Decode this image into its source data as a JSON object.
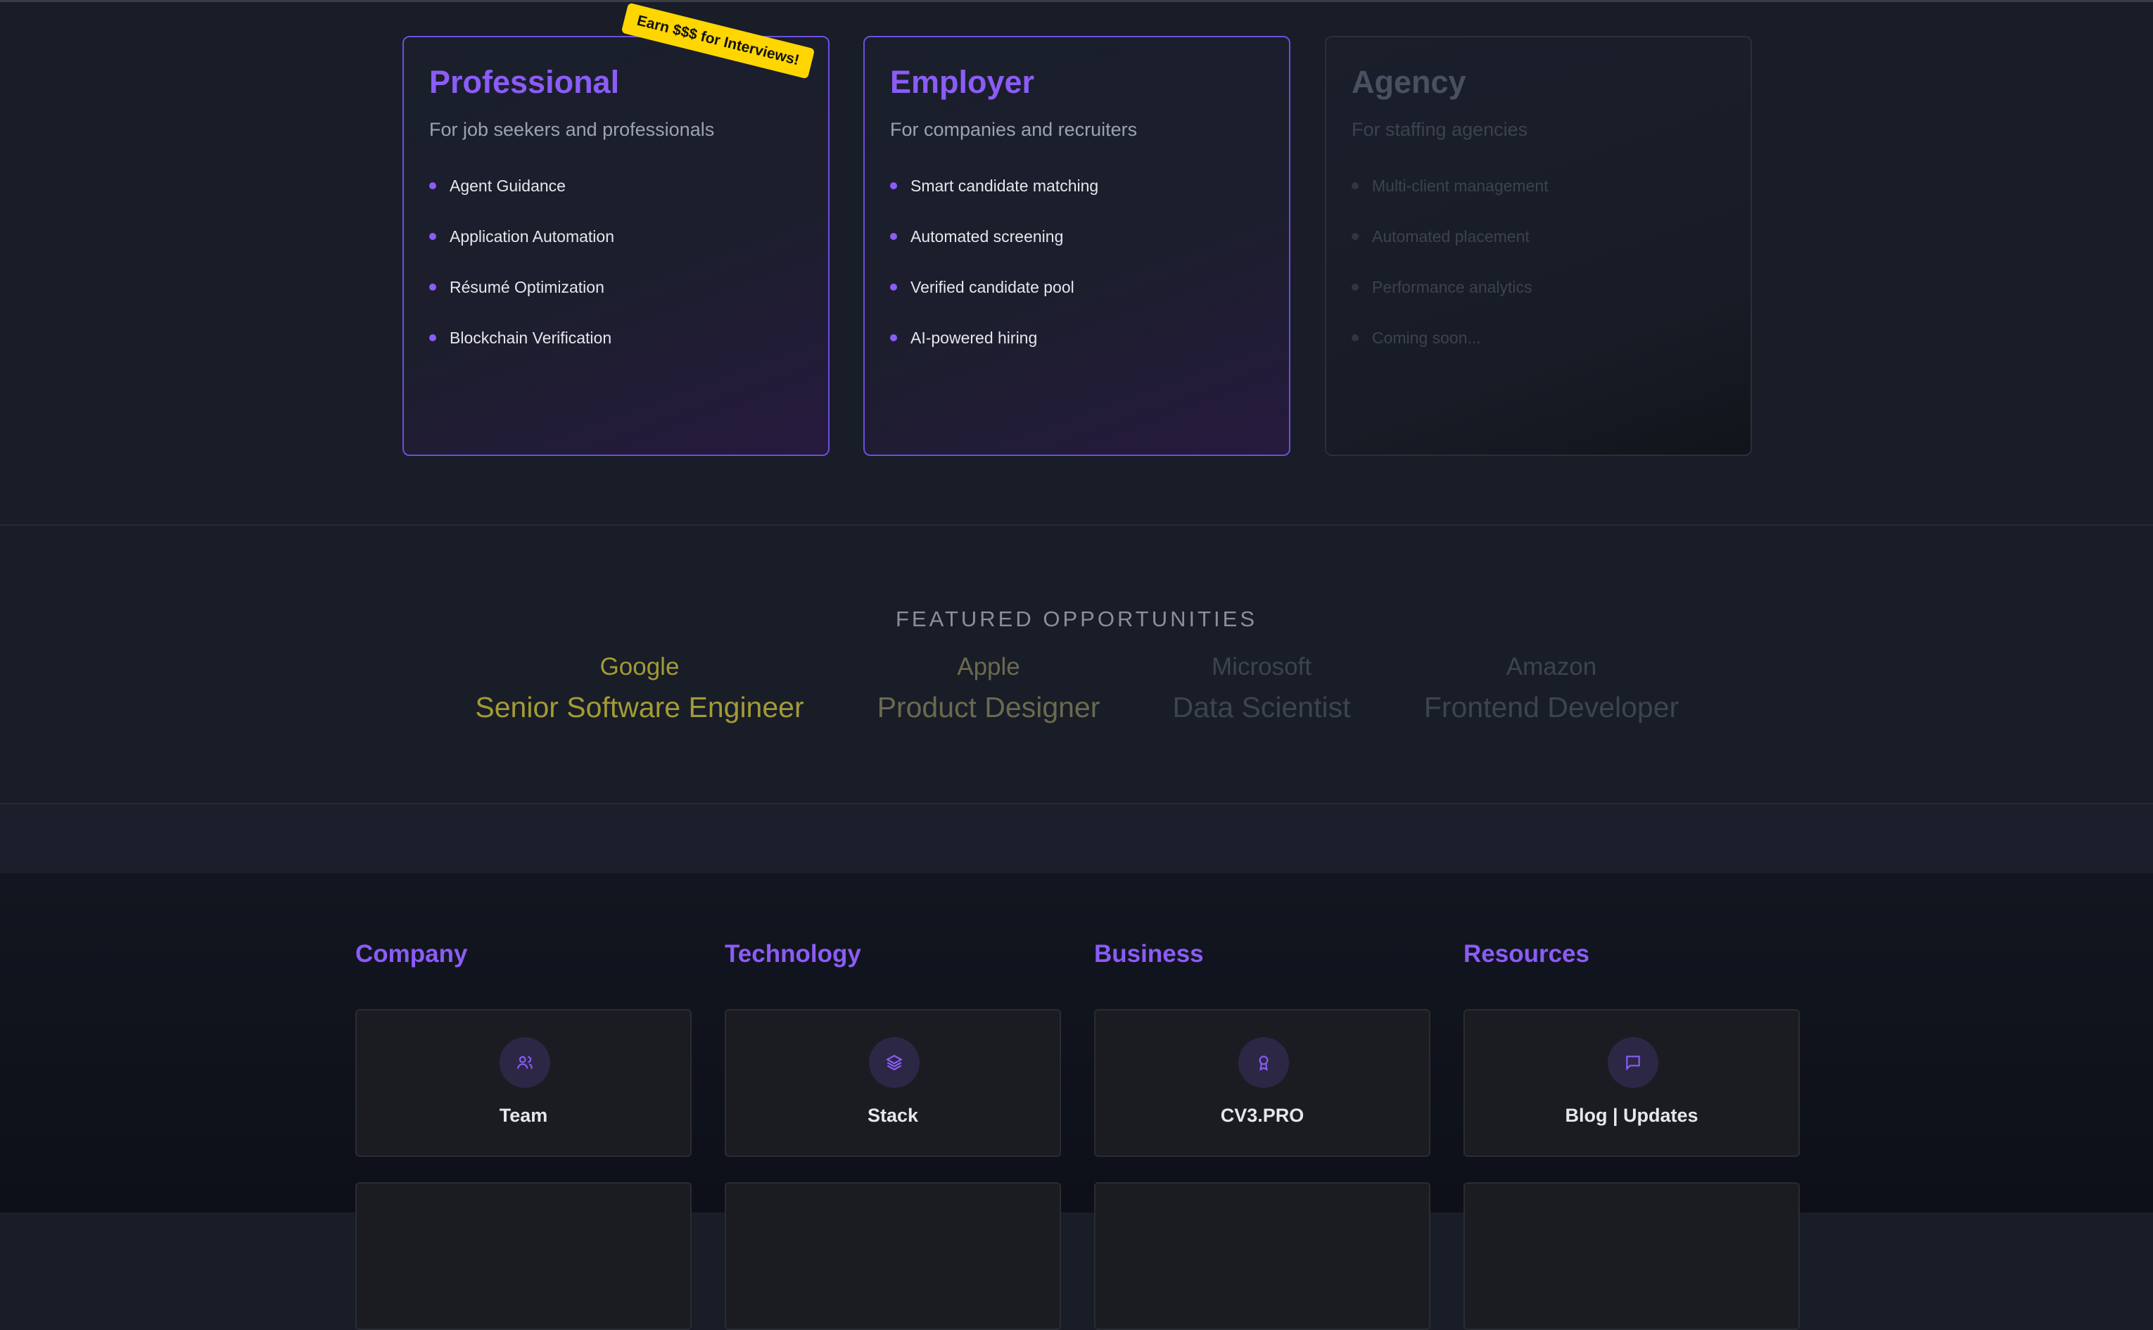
{
  "plans": [
    {
      "title": "Professional",
      "subtitle": "For job seekers and professionals",
      "features": [
        "Agent Guidance",
        "Application Automation",
        "Résumé Optimization",
        "Blockchain Verification"
      ],
      "badge": "Earn $$$ for Interviews!"
    },
    {
      "title": "Employer",
      "subtitle": "For companies and recruiters",
      "features": [
        "Smart candidate matching",
        "Automated screening",
        "Verified candidate pool",
        "AI-powered hiring"
      ]
    },
    {
      "title": "Agency",
      "subtitle": "For staffing agencies",
      "features": [
        "Multi-client management",
        "Automated placement",
        "Performance analytics",
        "Coming soon..."
      ]
    }
  ],
  "featured": {
    "title": "FEATURED OPPORTUNITIES",
    "items": [
      {
        "company": "Google",
        "role": "Senior Software Engineer",
        "color": "#a39b35"
      },
      {
        "company": "Apple",
        "role": "Product Designer",
        "color": "#6b6a4e"
      },
      {
        "company": "Microsoft",
        "role": "Data Scientist",
        "color": "#3e4350"
      },
      {
        "company": "Amazon",
        "role": "Frontend Developer",
        "color": "#3e4350"
      }
    ]
  },
  "footer": {
    "columns": [
      {
        "heading": "Company",
        "card": "Team",
        "icon": "users-icon"
      },
      {
        "heading": "Technology",
        "card": "Stack",
        "icon": "layers-icon"
      },
      {
        "heading": "Business",
        "card": "CV3.PRO",
        "icon": "award-icon"
      },
      {
        "heading": "Resources",
        "card": "Blog | Updates",
        "icon": "message-square-icon"
      }
    ]
  },
  "colors": {
    "accent": "#8b5cf6",
    "badge": "#ffd600"
  }
}
